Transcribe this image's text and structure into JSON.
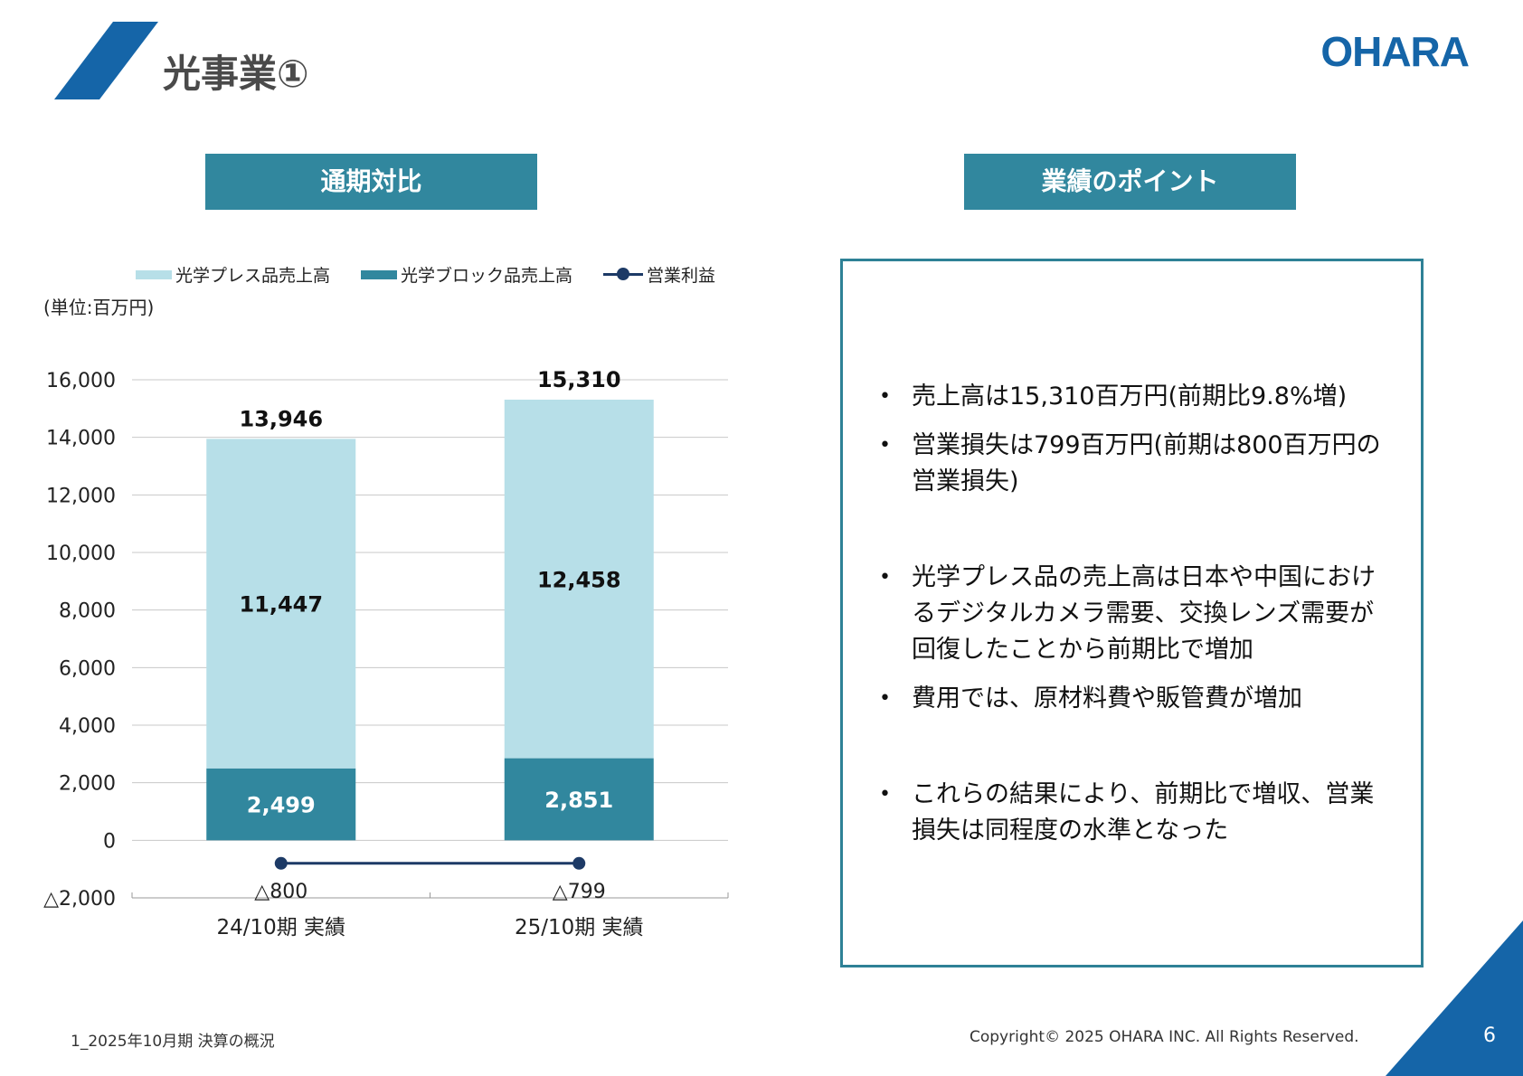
{
  "page": {
    "title": "光事業①",
    "logo_text": "OHARA",
    "left_header": "通期対比",
    "right_header": "業績のポイント",
    "unit_label": "(単位:百万円)",
    "footer_left": "1_2025年10月期 決算の概況",
    "copyright": "Copyright© 2025 OHARA INC. All Rights Reserved.",
    "page_number": "6",
    "brand_color": "#1565a8",
    "accent_color": "#31879e"
  },
  "points": [
    "売上高は15,310百万円(前期比9.8%増)",
    "営業損失は799百万円(前期は800百万円の営業損失)",
    "光学プレス品の売上高は日本や中国におけるデジタルカメラ需要、交換レンズ需要が回復したことから前期比で増加",
    "費用では、原材料費や販管費が増加",
    "これらの結果により、前期比で増収、営業損失は同程度の水準となった"
  ],
  "chart_data": {
    "type": "bar",
    "stacked": true,
    "categories": [
      "24/10期 実績",
      "25/10期 実績"
    ],
    "series": [
      {
        "name": "光学プレス品売上高",
        "values": [
          11447,
          12458
        ],
        "labels": [
          "11,447",
          "12,458"
        ],
        "color": "#b7dfe8"
      },
      {
        "name": "光学ブロック品売上高",
        "values": [
          2499,
          2851
        ],
        "labels": [
          "2,499",
          "2,851"
        ],
        "color": "#31879e"
      },
      {
        "name": "営業利益",
        "type": "line",
        "values": [
          -800,
          -799
        ],
        "labels": [
          "△800",
          "△799"
        ],
        "color": "#1d3a66"
      }
    ],
    "totals": [
      13946,
      15310
    ],
    "total_labels": [
      "13,946",
      "15,310"
    ],
    "ylim": [
      -2000,
      16000
    ],
    "yticks": [
      16000,
      14000,
      12000,
      10000,
      8000,
      6000,
      4000,
      2000,
      0,
      -2000
    ],
    "ytick_labels": [
      "16,000",
      "14,000",
      "12,000",
      "10,000",
      "8,000",
      "6,000",
      "4,000",
      "2,000",
      "0",
      "△2,000"
    ],
    "grid": true,
    "legend": "top"
  }
}
